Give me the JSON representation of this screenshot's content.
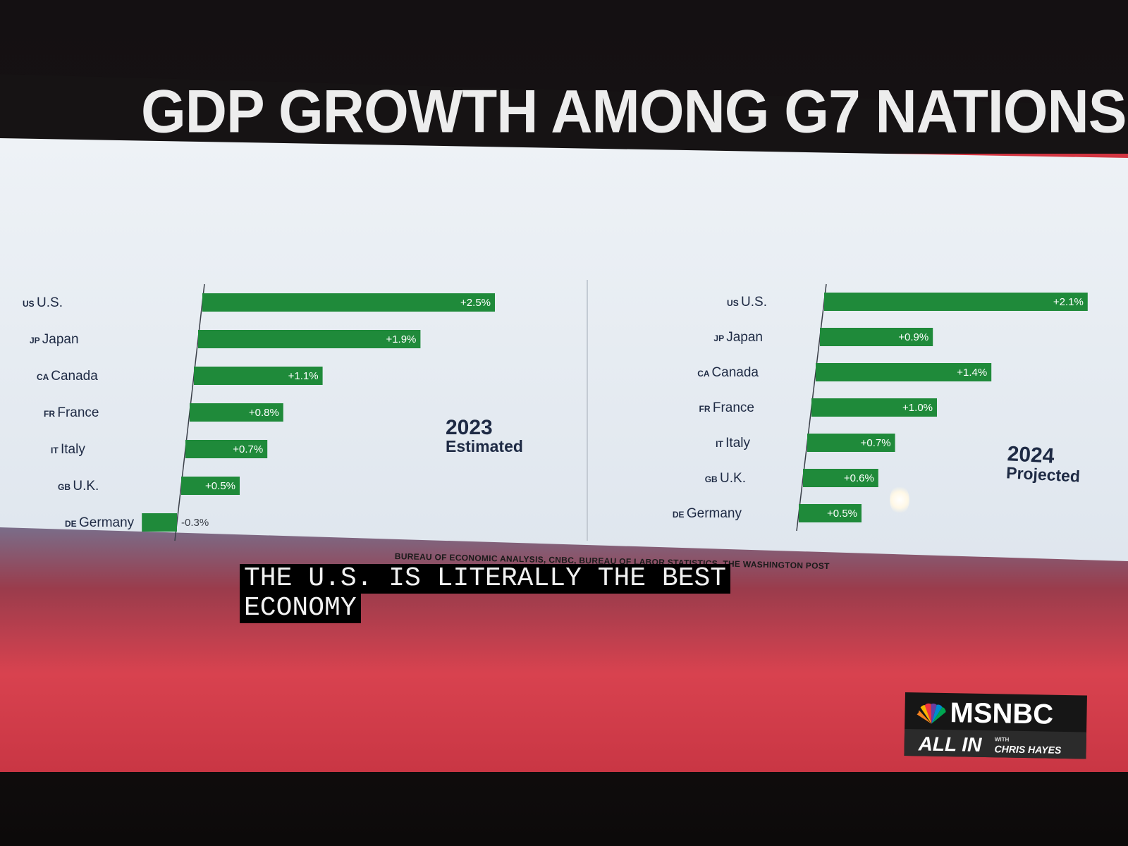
{
  "title": "GDP GROWTH AMONG G7 NATIONS",
  "chart_data": [
    {
      "type": "bar",
      "orientation": "horizontal",
      "year": "2023",
      "subtitle": "Estimated",
      "categories": [
        {
          "code": "US",
          "name": "U.S."
        },
        {
          "code": "JP",
          "name": "Japan"
        },
        {
          "code": "CA",
          "name": "Canada"
        },
        {
          "code": "FR",
          "name": "France"
        },
        {
          "code": "IT",
          "name": "Italy"
        },
        {
          "code": "GB",
          "name": "U.K."
        },
        {
          "code": "DE",
          "name": "Germany"
        }
      ],
      "values": [
        2.5,
        1.9,
        1.1,
        0.8,
        0.7,
        0.5,
        -0.3
      ],
      "labels": [
        "+2.5%",
        "+1.9%",
        "+1.1%",
        "+0.8%",
        "+0.7%",
        "+0.5%",
        "-0.3%"
      ]
    },
    {
      "type": "bar",
      "orientation": "horizontal",
      "year": "2024",
      "subtitle": "Projected",
      "categories": [
        {
          "code": "US",
          "name": "U.S."
        },
        {
          "code": "JP",
          "name": "Japan"
        },
        {
          "code": "CA",
          "name": "Canada"
        },
        {
          "code": "FR",
          "name": "France"
        },
        {
          "code": "IT",
          "name": "Italy"
        },
        {
          "code": "GB",
          "name": "U.K."
        },
        {
          "code": "DE",
          "name": "Germany"
        }
      ],
      "values": [
        2.1,
        0.9,
        1.4,
        1.0,
        0.7,
        0.6,
        0.5
      ],
      "labels": [
        "+2.1%",
        "+0.9%",
        "+1.4%",
        "+1.0%",
        "+0.7%",
        "+0.6%",
        "+0.5%"
      ]
    }
  ],
  "source": "BUREAU OF ECONOMIC ANALYSIS, CNBC, BUREAU OF LABOR STATISTICS, THE WASHINGTON POST",
  "caption": {
    "line1": "THE U.S. IS LITERALLY THE BEST",
    "line2": "ECONOMY"
  },
  "logo": {
    "network": "MSNBC",
    "show": "ALL IN",
    "with": "WITH",
    "host": "CHRIS HAYES"
  },
  "colors": {
    "bar": "#1f8a3a",
    "header": "#161314",
    "accent": "#d23541"
  }
}
